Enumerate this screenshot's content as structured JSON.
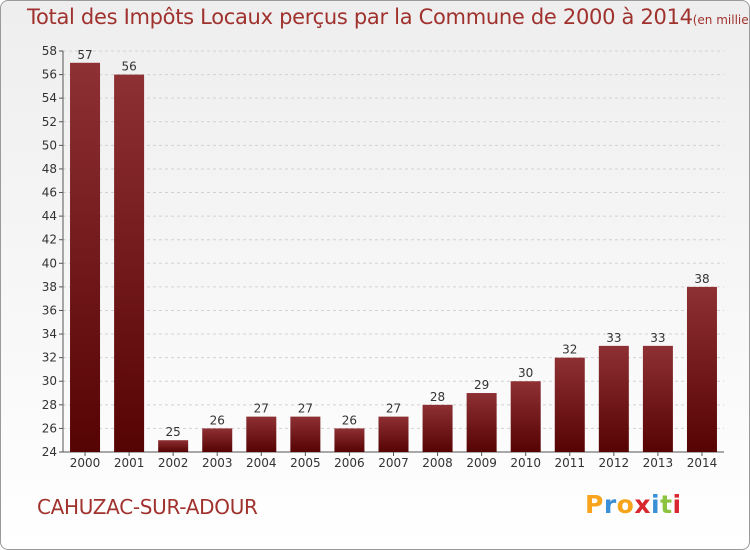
{
  "title": {
    "main": "Total des Impôts Locaux perçus par la Commune de 2000 à 2014",
    "unit": "(en milliers d'€)"
  },
  "commune": "CAHUZAC-SUR-ADOUR",
  "logo": {
    "letters": [
      "P",
      "r",
      "o",
      "x",
      "i",
      "t",
      "i"
    ],
    "colors": [
      "#f7a31b",
      "#3a8fd6",
      "#f7a31b",
      "#d8272e",
      "#3a8fd6",
      "#8cc43f",
      "#d8272e"
    ]
  },
  "colors": {
    "bar_light": "#8e3034",
    "bar_dark": "#560303",
    "title": "#a0322e"
  },
  "chart_data": {
    "type": "bar",
    "title": "Total des Impôts Locaux perçus par la Commune de 2000 à 2014",
    "xlabel": "",
    "ylabel": "",
    "ylim": [
      24,
      58
    ],
    "yticks": [
      24,
      26,
      28,
      30,
      32,
      34,
      36,
      38,
      40,
      42,
      44,
      46,
      48,
      50,
      52,
      54,
      56,
      58
    ],
    "grid": true,
    "categories": [
      "2000",
      "2001",
      "2002",
      "2003",
      "2004",
      "2005",
      "2006",
      "2007",
      "2008",
      "2009",
      "2010",
      "2011",
      "2012",
      "2013",
      "2014"
    ],
    "values": [
      57,
      56,
      25,
      26,
      27,
      27,
      26,
      27,
      28,
      29,
      30,
      32,
      33,
      33,
      38
    ]
  }
}
